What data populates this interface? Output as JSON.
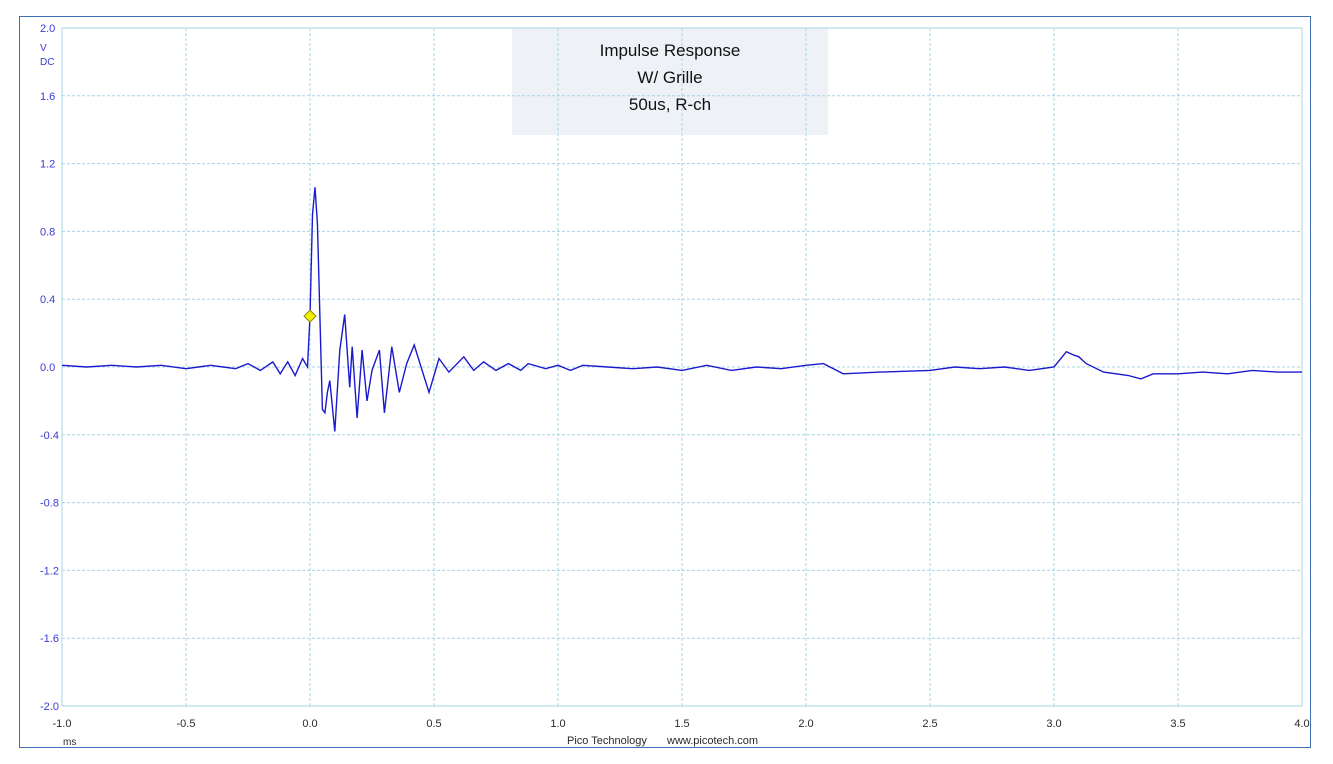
{
  "colors": {
    "trace": "#1a1acc",
    "grid": "#a8d4e6",
    "frame": "#3f6fb4",
    "title_box": "#eef2f7",
    "marker": "#f2f200"
  },
  "footer": {
    "vendor": "Pico Technology",
    "url": "www.picotech.com"
  },
  "chart_data": {
    "type": "line",
    "title_lines": [
      "Impulse Response",
      "W/ Grille",
      "50us, R-ch"
    ],
    "y_unit_lines": [
      "V",
      "DC"
    ],
    "x_unit": "ms",
    "xlim": [
      -1.0,
      4.0
    ],
    "ylim": [
      -2.0,
      2.0
    ],
    "x_ticks": [
      -1.0,
      -0.5,
      0.0,
      0.5,
      1.0,
      1.5,
      2.0,
      2.5,
      3.0,
      3.5,
      4.0
    ],
    "y_ticks": [
      2.0,
      1.6,
      1.2,
      0.8,
      0.4,
      0.0,
      -0.4,
      -0.8,
      -1.2,
      -1.6,
      -2.0
    ],
    "x_tick_labels": [
      "-1.0",
      "-0.5",
      "0.0",
      "0.5",
      "1.0",
      "1.5",
      "2.0",
      "2.5",
      "3.0",
      "3.5",
      "4.0"
    ],
    "y_tick_labels": [
      "2.0",
      "1.6",
      "1.2",
      "0.8",
      "0.4",
      "0.0",
      "-0.4",
      "-0.8",
      "-1.2",
      "-1.6",
      "-2.0"
    ],
    "grid": true,
    "trigger_marker": {
      "x": 0.0,
      "y": 0.3
    },
    "series": [
      {
        "x": [
          -1.0,
          -0.9,
          -0.8,
          -0.7,
          -0.6,
          -0.5,
          -0.45,
          -0.4,
          -0.35,
          -0.3,
          -0.25,
          -0.2,
          -0.15,
          -0.12,
          -0.09,
          -0.06,
          -0.03,
          -0.01,
          0.0,
          0.01,
          0.02,
          0.03,
          0.04,
          0.05,
          0.06,
          0.07,
          0.08,
          0.1,
          0.12,
          0.14,
          0.16,
          0.17,
          0.19,
          0.21,
          0.23,
          0.25,
          0.28,
          0.3,
          0.33,
          0.36,
          0.39,
          0.42,
          0.48,
          0.52,
          0.56,
          0.62,
          0.66,
          0.7,
          0.75,
          0.8,
          0.85,
          0.88,
          0.95,
          1.0,
          1.05,
          1.1,
          1.2,
          1.3,
          1.4,
          1.5,
          1.6,
          1.7,
          1.8,
          1.9,
          2.0,
          2.07,
          2.15,
          2.3,
          2.5,
          2.6,
          2.7,
          2.8,
          2.9,
          3.0,
          3.05,
          3.08,
          3.1,
          3.13,
          3.2,
          3.3,
          3.35,
          3.4,
          3.5,
          3.6,
          3.7,
          3.8,
          3.9,
          4.0
        ],
        "y": [
          0.01,
          0.0,
          0.01,
          0.0,
          0.01,
          -0.01,
          0.0,
          0.01,
          0.0,
          -0.01,
          0.02,
          -0.02,
          0.03,
          -0.04,
          0.03,
          -0.05,
          0.05,
          0.0,
          0.3,
          0.9,
          1.06,
          0.85,
          0.3,
          -0.25,
          -0.27,
          -0.15,
          -0.08,
          -0.38,
          0.1,
          0.31,
          -0.12,
          0.12,
          -0.3,
          0.1,
          -0.2,
          -0.02,
          0.1,
          -0.27,
          0.12,
          -0.15,
          0.02,
          0.13,
          -0.15,
          0.05,
          -0.03,
          0.06,
          -0.02,
          0.03,
          -0.02,
          0.02,
          -0.02,
          0.02,
          -0.01,
          0.01,
          -0.02,
          0.01,
          0.0,
          -0.01,
          0.0,
          -0.02,
          0.01,
          -0.02,
          0.0,
          -0.01,
          0.01,
          0.02,
          -0.04,
          -0.03,
          -0.02,
          0.0,
          -0.01,
          0.0,
          -0.02,
          0.0,
          0.09,
          0.07,
          0.06,
          0.02,
          -0.03,
          -0.05,
          -0.07,
          -0.04,
          -0.04,
          -0.03,
          -0.04,
          -0.02,
          -0.03,
          -0.03
        ]
      }
    ]
  }
}
